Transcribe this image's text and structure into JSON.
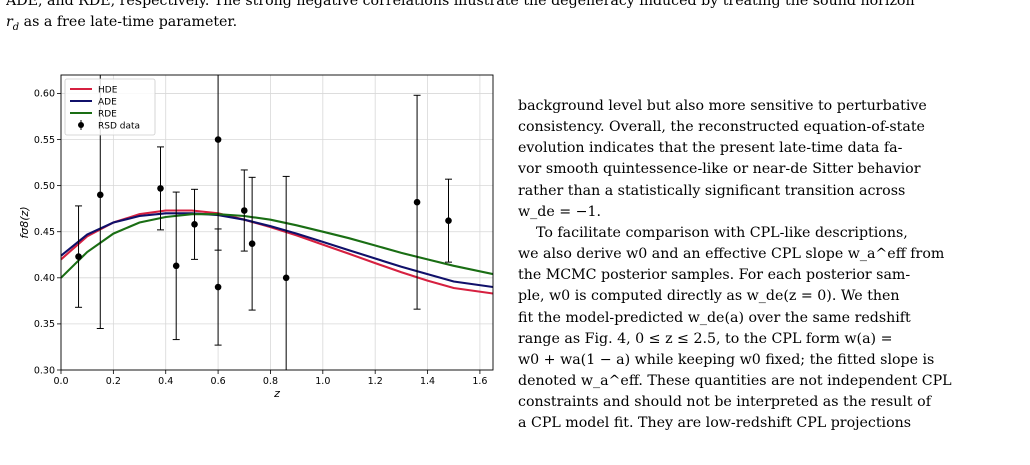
{
  "caption": {
    "line1": "ADE, and RDE, respectively. The strong negative correlations illustrate the degeneracy induced by treating the sound horizon",
    "line2_math": "r",
    "line2_sub": "d",
    "line2_rest": " as a free late-time parameter."
  },
  "chart_data": {
    "type": "line",
    "xlabel": "z",
    "ylabel": "fσ8(z)",
    "xlim": [
      0.0,
      1.65
    ],
    "ylim": [
      0.3,
      0.62
    ],
    "x_ticks": [
      "0.0",
      "0.2",
      "0.4",
      "0.6",
      "0.8",
      "1.0",
      "1.2",
      "1.4",
      "1.6"
    ],
    "y_ticks": [
      "0.30",
      "0.35",
      "0.40",
      "0.45",
      "0.50",
      "0.55",
      "0.60"
    ],
    "legend_position": "top-left",
    "grid": true,
    "series": [
      {
        "name": "HDE",
        "color": "#d62040",
        "x": [
          0.0,
          0.1,
          0.2,
          0.3,
          0.4,
          0.5,
          0.6,
          0.7,
          0.8,
          0.9,
          1.0,
          1.1,
          1.2,
          1.3,
          1.4,
          1.5,
          1.65
        ],
        "y": [
          0.42,
          0.445,
          0.46,
          0.469,
          0.473,
          0.473,
          0.47,
          0.463,
          0.455,
          0.446,
          0.436,
          0.426,
          0.416,
          0.406,
          0.397,
          0.389,
          0.383
        ]
      },
      {
        "name": "ADE",
        "color": "#10106a",
        "x": [
          0.0,
          0.1,
          0.2,
          0.3,
          0.4,
          0.5,
          0.6,
          0.7,
          0.8,
          0.9,
          1.0,
          1.1,
          1.2,
          1.3,
          1.4,
          1.5,
          1.65
        ],
        "y": [
          0.424,
          0.447,
          0.46,
          0.467,
          0.47,
          0.47,
          0.468,
          0.463,
          0.456,
          0.448,
          0.439,
          0.43,
          0.421,
          0.412,
          0.404,
          0.396,
          0.39
        ]
      },
      {
        "name": "RDE",
        "color": "#1a6e14",
        "x": [
          0.0,
          0.1,
          0.2,
          0.3,
          0.4,
          0.5,
          0.6,
          0.7,
          0.8,
          0.9,
          1.0,
          1.1,
          1.2,
          1.3,
          1.4,
          1.5,
          1.65
        ],
        "y": [
          0.4,
          0.428,
          0.448,
          0.46,
          0.466,
          0.469,
          0.469,
          0.467,
          0.463,
          0.457,
          0.45,
          0.443,
          0.435,
          0.427,
          0.42,
          0.413,
          0.404
        ]
      }
    ],
    "rsd_data": {
      "name": "RSD data",
      "color": "#000000",
      "points": [
        {
          "x": 0.067,
          "y": 0.423,
          "lo": 0.368,
          "hi": 0.478
        },
        {
          "x": 0.15,
          "y": 0.49,
          "lo": 0.345,
          "hi": 0.635
        },
        {
          "x": 0.38,
          "y": 0.497,
          "lo": 0.452,
          "hi": 0.542
        },
        {
          "x": 0.44,
          "y": 0.413,
          "lo": 0.333,
          "hi": 0.493
        },
        {
          "x": 0.51,
          "y": 0.458,
          "lo": 0.42,
          "hi": 0.496
        },
        {
          "x": 0.6,
          "y": 0.55,
          "lo": 0.43,
          "hi": 0.67
        },
        {
          "x": 0.6,
          "y": 0.39,
          "lo": 0.327,
          "hi": 0.453
        },
        {
          "x": 0.7,
          "y": 0.473,
          "lo": 0.429,
          "hi": 0.517
        },
        {
          "x": 0.73,
          "y": 0.437,
          "lo": 0.365,
          "hi": 0.509
        },
        {
          "x": 0.86,
          "y": 0.4,
          "lo": 0.29,
          "hi": 0.51
        },
        {
          "x": 1.36,
          "y": 0.482,
          "lo": 0.366,
          "hi": 0.598
        },
        {
          "x": 1.48,
          "y": 0.462,
          "lo": 0.417,
          "hi": 0.507
        }
      ]
    }
  },
  "right_col": {
    "p1": [
      "background level but also more sensitive to perturbative",
      "consistency. Overall, the reconstructed equation-of-state",
      "evolution indicates that the present late-time data fa-",
      "vor smooth quintessence-like or near-de Sitter behavior",
      "rather than a statistically significant transition across"
    ],
    "p1_last": "w_de = −1.",
    "p2": [
      "To facilitate comparison with CPL-like descriptions,",
      "we also derive w0 and an effective CPL slope w_a^eff from",
      "the MCMC posterior samples. For each posterior sam-",
      "ple, w0 is computed directly as w_de(z = 0). We then",
      "fit the model-predicted w_de(a) over the same redshift",
      "range as Fig. 4, 0 ≤ z ≤ 2.5, to the CPL form w(a) =",
      "w0 + wa(1 − a) while keeping w0 fixed; the fitted slope is",
      "denoted w_a^eff. These quantities are not independent CPL",
      "constraints and should not be interpreted as the result of",
      "a CPL model fit. They are low-redshift CPL projections"
    ]
  }
}
